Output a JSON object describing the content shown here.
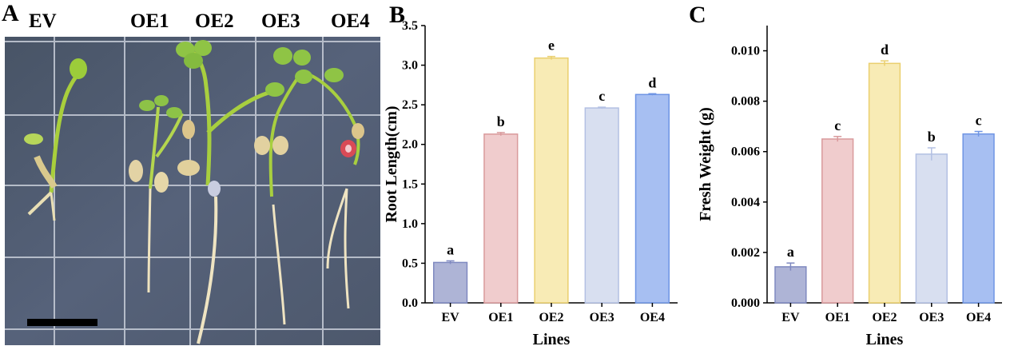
{
  "panels": {
    "a": "A",
    "b": "B",
    "c": "C"
  },
  "photo": {
    "labels": [
      "EV",
      "OE1",
      "OE2",
      "OE3",
      "OE4"
    ]
  },
  "chart_data": [
    {
      "type": "bar",
      "categories": [
        "EV",
        "OE1",
        "OE2",
        "OE3",
        "OE4"
      ],
      "values": [
        0.51,
        2.13,
        3.09,
        2.46,
        2.63
      ],
      "errors": [
        0.02,
        0.02,
        0.02,
        0.01,
        0.01
      ],
      "letters": [
        "a",
        "b",
        "e",
        "c",
        "d"
      ],
      "xlabel": "Lines",
      "ylabel": "Root Length(cm)",
      "ylim": [
        0,
        3.5
      ],
      "ticks": [
        "0.0",
        "0.5",
        "1.0",
        "1.5",
        "2.0",
        "2.5",
        "3.0",
        "3.5"
      ],
      "colors": [
        "#aeb4d6",
        "#f0cccd",
        "#f8ebb5",
        "#d8dff0",
        "#a7bff2"
      ],
      "edge_colors": [
        "#7f89c0",
        "#d99a9c",
        "#eacf6e",
        "#b3c0e3",
        "#6f95e4"
      ]
    },
    {
      "type": "bar",
      "categories": [
        "EV",
        "OE1",
        "OE2",
        "OE3",
        "OE4"
      ],
      "values": [
        0.00143,
        0.0065,
        0.0095,
        0.0059,
        0.0067
      ],
      "errors": [
        0.00015,
        0.0001,
        0.0001,
        0.00025,
        0.0001
      ],
      "letters": [
        "a",
        "c",
        "d",
        "b",
        "c"
      ],
      "xlabel": "Lines",
      "ylabel": "Fresh Weight (g)",
      "ylim": [
        0,
        0.011
      ],
      "ticks": [
        "0.000",
        "0.002",
        "0.004",
        "0.006",
        "0.008",
        "0.010"
      ],
      "colors": [
        "#aeb4d6",
        "#f0cccd",
        "#f8ebb5",
        "#d8dff0",
        "#a7bff2"
      ],
      "edge_colors": [
        "#7f89c0",
        "#d99a9c",
        "#eacf6e",
        "#b3c0e3",
        "#6f95e4"
      ]
    }
  ]
}
